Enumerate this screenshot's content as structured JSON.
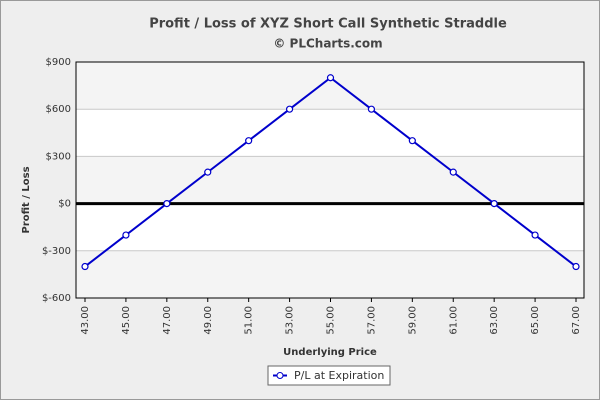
{
  "chart_data": {
    "type": "line",
    "title": "Profit / Loss of XYZ Short Call Synthetic Straddle",
    "subtitle": "© PLCharts.com",
    "x_label": "Underlying Price",
    "y_label": "Profit / Loss",
    "categories": [
      "43.00",
      "45.00",
      "47.00",
      "49.00",
      "51.00",
      "53.00",
      "55.00",
      "57.00",
      "59.00",
      "61.00",
      "63.00",
      "65.00",
      "67.00"
    ],
    "series": [
      {
        "name": "P/L at Expiration",
        "color": "#0000cc",
        "values": [
          -400,
          -200,
          0,
          200,
          400,
          600,
          800,
          600,
          400,
          200,
          0,
          -200,
          -400
        ]
      }
    ],
    "ylim": [
      -600,
      900
    ],
    "yticks": [
      {
        "value": -600,
        "label": "$-600"
      },
      {
        "value": -300,
        "label": "$-300"
      },
      {
        "value": 0,
        "label": "$0"
      },
      {
        "value": 300,
        "label": "$300"
      },
      {
        "value": 600,
        "label": "$600"
      },
      {
        "value": 900,
        "label": "$900"
      }
    ],
    "grid": true,
    "legend": "bottom"
  }
}
